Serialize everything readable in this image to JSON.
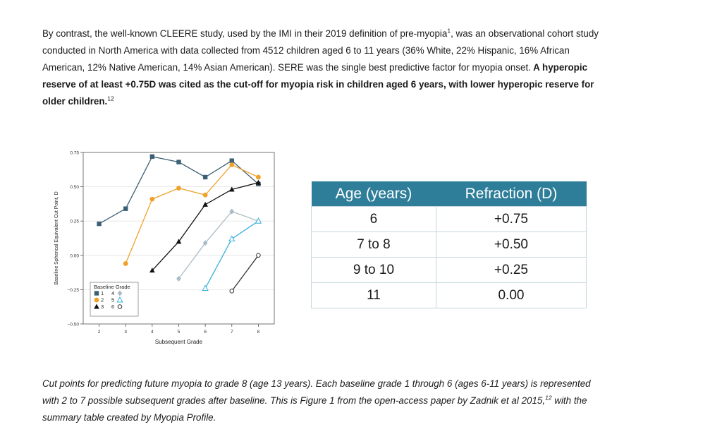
{
  "paragraph": {
    "part1": "By contrast, the well-known CLEERE study, used by the IMI in their 2019 definition of pre-myopia",
    "sup1": "1",
    "part2": ", was an observational cohort study conducted in North America with data collected from 4512 children aged 6 to 11 years (36% White, 22% Hispanic, 16% African American, 12% Native American, 14% Asian American). SERE was the single best predictive factor for myopia onset.",
    "bold": " A hyperopic reserve of at least +0.75D was cited as the cut-off for myopia risk in children aged 6 years, with lower hyperopic reserve for older children.",
    "sup2": "12"
  },
  "chart_data": {
    "type": "line",
    "xlabel": "Subsequent Grade",
    "ylabel": "Baseline Spherical Equivalent Cut Point, D",
    "xlim": [
      1.4,
      8.6
    ],
    "ylim": [
      -0.5,
      0.75
    ],
    "xticks": [
      2,
      3,
      4,
      5,
      6,
      7,
      8
    ],
    "yticks": [
      "0.75",
      "0.50",
      "0.25",
      "0.00",
      "−0.25",
      "−0.50"
    ],
    "ytick_values": [
      0.75,
      0.5,
      0.25,
      0.0,
      -0.25,
      -0.5
    ],
    "grid": true,
    "legend_title": "Baseline Grade",
    "legend_placement": "bottom-left",
    "series": [
      {
        "name": "1",
        "marker": "square",
        "color": "#3d5f73",
        "x": [
          2,
          3,
          4,
          5,
          6,
          7,
          8
        ],
        "y": [
          0.23,
          0.34,
          0.72,
          0.68,
          0.57,
          0.69,
          0.52
        ]
      },
      {
        "name": "2",
        "marker": "circle",
        "color": "#f0a12a",
        "x": [
          3,
          4,
          5,
          6,
          7,
          8
        ],
        "y": [
          -0.06,
          0.41,
          0.49,
          0.44,
          0.66,
          0.57
        ]
      },
      {
        "name": "3",
        "marker": "triangle",
        "color": "#111111",
        "x": [
          4,
          5,
          6,
          7,
          8
        ],
        "y": [
          -0.11,
          0.1,
          0.37,
          0.48,
          0.53
        ]
      },
      {
        "name": "4",
        "marker": "diamond",
        "color": "#a9bcc6",
        "x": [
          5,
          6,
          7,
          8
        ],
        "y": [
          -0.17,
          0.09,
          0.32,
          0.25
        ]
      },
      {
        "name": "5",
        "marker": "triangle-open",
        "color": "#3ab1da",
        "x": [
          6,
          7,
          8
        ],
        "y": [
          -0.24,
          0.12,
          0.25
        ]
      },
      {
        "name": "6",
        "marker": "circle-open",
        "color": "#333333",
        "x": [
          7,
          8
        ],
        "y": [
          -0.26,
          0.0
        ]
      }
    ]
  },
  "summary_table": {
    "headers": [
      "Age (years)",
      "Refraction (D)"
    ],
    "rows": [
      [
        "6",
        "+0.75"
      ],
      [
        "7 to 8",
        "+0.50"
      ],
      [
        "9 to 10",
        "+0.25"
      ],
      [
        "11",
        "0.00"
      ]
    ],
    "header_color": "#2e7e99"
  },
  "caption": {
    "part1": "Cut points for predicting future myopia to grade 8 (age 13 years). Each baseline grade 1 through 6 (ages 6-11 years) is represented with 2 to 7 possible subsequent grades after baseline. This is Figure 1 from the open-access paper by Zadnik et al 2015,",
    "sup": "12",
    "part2": " with the summary table created by Myopia Profile."
  }
}
